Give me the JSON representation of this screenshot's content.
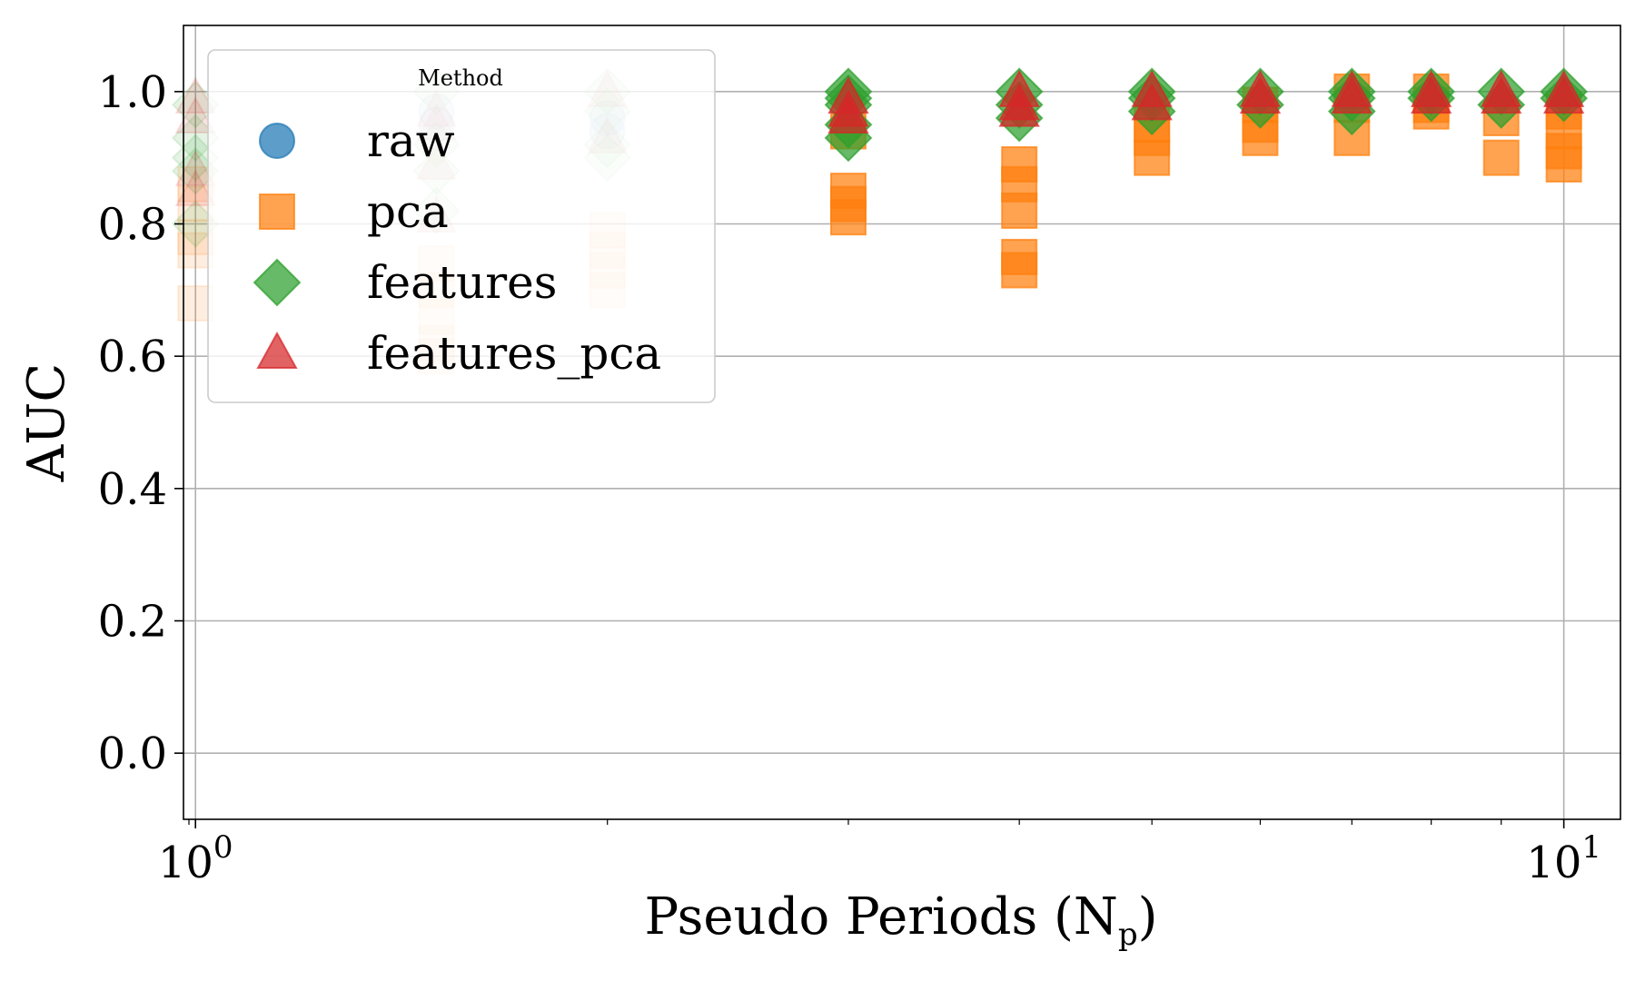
{
  "chart_data": {
    "type": "scatter",
    "xlabel": "Pseudo Periods (N",
    "xlabel_sub": "p",
    "xlabel_close": ")",
    "ylabel": "AUC",
    "xscale": "log",
    "xlim": [
      0.98,
      11.0
    ],
    "ylim": [
      -0.1,
      1.1
    ],
    "yticks": [
      {
        "value": 0.0,
        "label": "0.0"
      },
      {
        "value": 0.2,
        "label": "0.2"
      },
      {
        "value": 0.4,
        "label": "0.4"
      },
      {
        "value": 0.6,
        "label": "0.6"
      },
      {
        "value": 0.8,
        "label": "0.8"
      },
      {
        "value": 1.0,
        "label": "1.0"
      }
    ],
    "xticks": [
      {
        "value": 1,
        "base": "10",
        "exp": "0"
      },
      {
        "value": 10,
        "base": "10",
        "exp": "1"
      }
    ],
    "x_minor_ticks": [
      2,
      3,
      4,
      5,
      6,
      7,
      8,
      9
    ],
    "grid": true,
    "legend": {
      "title": "Method",
      "placement": "top-left",
      "entries": [
        {
          "name": "raw",
          "marker": "circle",
          "color": "#1f77b4"
        },
        {
          "name": "pca",
          "marker": "square",
          "color": "#ff7f0e"
        },
        {
          "name": "features",
          "marker": "diamond",
          "color": "#2ca02c"
        },
        {
          "name": "features_pca",
          "marker": "triangle",
          "color": "#d62728"
        }
      ]
    },
    "series": [
      {
        "name": "raw",
        "marker": "circle",
        "color": "#1f77b4",
        "points": [
          {
            "x": 1.5,
            "y": 0.97,
            "faded": true
          },
          {
            "x": 1.5,
            "y": 0.95,
            "faded": true
          },
          {
            "x": 2.0,
            "y": 0.96,
            "faded": true
          },
          {
            "x": 2.0,
            "y": 0.94,
            "faded": true
          }
        ]
      },
      {
        "name": "pca",
        "marker": "square",
        "color": "#ff7f0e",
        "points": [
          {
            "x": 1.0,
            "y": 0.86,
            "faded": true
          },
          {
            "x": 1.0,
            "y": 0.83,
            "faded": true
          },
          {
            "x": 1.0,
            "y": 0.78,
            "faded": true
          },
          {
            "x": 1.0,
            "y": 0.76,
            "faded": true
          },
          {
            "x": 1.0,
            "y": 0.68,
            "faded": true
          },
          {
            "x": 1.5,
            "y": 0.74,
            "faded": true
          },
          {
            "x": 1.5,
            "y": 0.7,
            "faded": true
          },
          {
            "x": 1.5,
            "y": 0.66,
            "faded": true
          },
          {
            "x": 1.5,
            "y": 0.62,
            "faded": true
          },
          {
            "x": 1.5,
            "y": 0.6,
            "faded": true
          },
          {
            "x": 2.0,
            "y": 0.79,
            "faded": true
          },
          {
            "x": 2.0,
            "y": 0.76,
            "faded": true
          },
          {
            "x": 2.0,
            "y": 0.73,
            "faded": true
          },
          {
            "x": 2.0,
            "y": 0.7,
            "faded": true
          },
          {
            "x": 3.0,
            "y": 0.94,
            "faded": false
          },
          {
            "x": 3.0,
            "y": 0.85,
            "faded": false
          },
          {
            "x": 3.0,
            "y": 0.83,
            "faded": false
          },
          {
            "x": 3.0,
            "y": 0.81,
            "faded": false
          },
          {
            "x": 4.0,
            "y": 0.89,
            "faded": false
          },
          {
            "x": 4.0,
            "y": 0.86,
            "faded": false
          },
          {
            "x": 4.0,
            "y": 0.82,
            "faded": false
          },
          {
            "x": 4.0,
            "y": 0.75,
            "faded": false
          },
          {
            "x": 4.0,
            "y": 0.73,
            "faded": false
          },
          {
            "x": 5.0,
            "y": 0.95,
            "faded": false
          },
          {
            "x": 5.0,
            "y": 0.93,
            "faded": false
          },
          {
            "x": 5.0,
            "y": 0.9,
            "faded": false
          },
          {
            "x": 6.0,
            "y": 0.98,
            "faded": false
          },
          {
            "x": 6.0,
            "y": 0.95,
            "faded": false
          },
          {
            "x": 6.0,
            "y": 0.93,
            "faded": false
          },
          {
            "x": 7.0,
            "y": 1.0,
            "faded": false
          },
          {
            "x": 7.0,
            "y": 0.98,
            "faded": false
          },
          {
            "x": 7.0,
            "y": 0.93,
            "faded": false
          },
          {
            "x": 8.0,
            "y": 1.0,
            "faded": false
          },
          {
            "x": 8.0,
            "y": 0.98,
            "faded": false
          },
          {
            "x": 8.0,
            "y": 0.97,
            "faded": false
          },
          {
            "x": 9.0,
            "y": 0.96,
            "faded": false
          },
          {
            "x": 9.0,
            "y": 0.9,
            "faded": false
          },
          {
            "x": 10.0,
            "y": 0.97,
            "faded": false
          },
          {
            "x": 10.0,
            "y": 0.94,
            "faded": false
          },
          {
            "x": 10.0,
            "y": 0.91,
            "faded": false
          },
          {
            "x": 10.0,
            "y": 0.89,
            "faded": false
          }
        ]
      },
      {
        "name": "features",
        "marker": "diamond",
        "color": "#2ca02c",
        "points": [
          {
            "x": 1.0,
            "y": 0.98,
            "faded": true
          },
          {
            "x": 1.0,
            "y": 0.93,
            "faded": true
          },
          {
            "x": 1.0,
            "y": 0.9,
            "faded": true
          },
          {
            "x": 1.0,
            "y": 0.88,
            "faded": true
          },
          {
            "x": 1.0,
            "y": 0.8,
            "faded": true
          },
          {
            "x": 1.5,
            "y": 1.0,
            "faded": true
          },
          {
            "x": 1.5,
            "y": 0.92,
            "faded": true
          },
          {
            "x": 1.5,
            "y": 0.88,
            "faded": true
          },
          {
            "x": 1.5,
            "y": 0.82,
            "faded": true
          },
          {
            "x": 2.0,
            "y": 1.0,
            "faded": true
          },
          {
            "x": 2.0,
            "y": 0.97,
            "faded": true
          },
          {
            "x": 2.0,
            "y": 0.92,
            "faded": true
          },
          {
            "x": 2.0,
            "y": 0.9,
            "faded": true
          },
          {
            "x": 3.0,
            "y": 1.0,
            "faded": false
          },
          {
            "x": 3.0,
            "y": 0.99,
            "faded": false
          },
          {
            "x": 3.0,
            "y": 0.98,
            "faded": false
          },
          {
            "x": 3.0,
            "y": 0.95,
            "faded": false
          },
          {
            "x": 3.0,
            "y": 0.93,
            "faded": false
          },
          {
            "x": 4.0,
            "y": 1.0,
            "faded": false
          },
          {
            "x": 4.0,
            "y": 0.98,
            "faded": false
          },
          {
            "x": 4.0,
            "y": 0.96,
            "faded": false
          },
          {
            "x": 5.0,
            "y": 1.0,
            "faded": false
          },
          {
            "x": 5.0,
            "y": 0.99,
            "faded": false
          },
          {
            "x": 5.0,
            "y": 0.97,
            "faded": false
          },
          {
            "x": 6.0,
            "y": 1.0,
            "faded": false
          },
          {
            "x": 6.0,
            "y": 0.98,
            "faded": false
          },
          {
            "x": 7.0,
            "y": 1.0,
            "faded": false
          },
          {
            "x": 7.0,
            "y": 0.99,
            "faded": false
          },
          {
            "x": 7.0,
            "y": 0.97,
            "faded": false
          },
          {
            "x": 8.0,
            "y": 1.0,
            "faded": false
          },
          {
            "x": 8.0,
            "y": 0.99,
            "faded": false
          },
          {
            "x": 9.0,
            "y": 1.0,
            "faded": false
          },
          {
            "x": 9.0,
            "y": 0.98,
            "faded": false
          },
          {
            "x": 10.0,
            "y": 1.0,
            "faded": false
          },
          {
            "x": 10.0,
            "y": 0.99,
            "faded": false
          }
        ]
      },
      {
        "name": "features_pca",
        "marker": "triangle",
        "color": "#d62728",
        "points": [
          {
            "x": 1.0,
            "y": 0.99,
            "faded": true
          },
          {
            "x": 1.0,
            "y": 0.96,
            "faded": true
          },
          {
            "x": 1.0,
            "y": 0.88,
            "faded": true
          },
          {
            "x": 1.0,
            "y": 0.85,
            "faded": true
          },
          {
            "x": 1.5,
            "y": 0.97,
            "faded": true
          },
          {
            "x": 1.5,
            "y": 0.95,
            "faded": true
          },
          {
            "x": 1.5,
            "y": 0.89,
            "faded": true
          },
          {
            "x": 1.5,
            "y": 0.81,
            "faded": true
          },
          {
            "x": 2.0,
            "y": 1.0,
            "faded": true
          },
          {
            "x": 2.0,
            "y": 0.93,
            "faded": true
          },
          {
            "x": 3.0,
            "y": 0.99,
            "faded": false
          },
          {
            "x": 3.0,
            "y": 0.97,
            "faded": false
          },
          {
            "x": 3.0,
            "y": 0.96,
            "faded": false
          },
          {
            "x": 4.0,
            "y": 1.0,
            "faded": false
          },
          {
            "x": 4.0,
            "y": 0.98,
            "faded": false
          },
          {
            "x": 4.0,
            "y": 0.97,
            "faded": false
          },
          {
            "x": 5.0,
            "y": 1.0,
            "faded": false
          },
          {
            "x": 5.0,
            "y": 0.98,
            "faded": false
          },
          {
            "x": 6.0,
            "y": 1.0,
            "faded": false
          },
          {
            "x": 6.0,
            "y": 0.99,
            "faded": false
          },
          {
            "x": 7.0,
            "y": 1.0,
            "faded": false
          },
          {
            "x": 7.0,
            "y": 0.99,
            "faded": false
          },
          {
            "x": 8.0,
            "y": 1.0,
            "faded": false
          },
          {
            "x": 8.0,
            "y": 0.99,
            "faded": false
          },
          {
            "x": 9.0,
            "y": 1.0,
            "faded": false
          },
          {
            "x": 9.0,
            "y": 0.99,
            "faded": false
          },
          {
            "x": 10.0,
            "y": 1.0,
            "faded": false
          },
          {
            "x": 10.0,
            "y": 0.99,
            "faded": false
          }
        ]
      }
    ]
  }
}
